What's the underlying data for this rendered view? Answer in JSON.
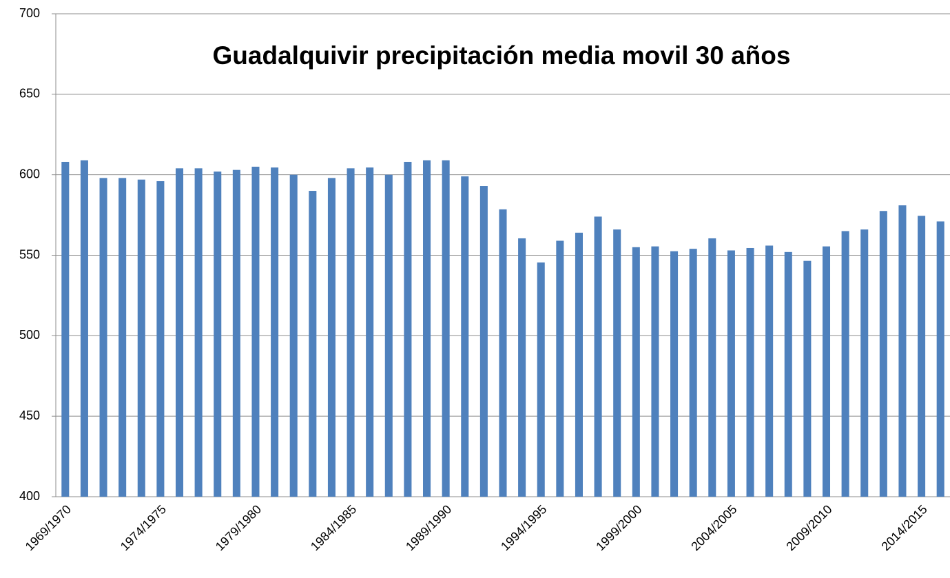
{
  "chart_data": {
    "type": "bar",
    "title": "Guadalquivir precipitación media movil 30 años",
    "categories": [
      "1969/1970",
      null,
      null,
      null,
      null,
      "1974/1975",
      null,
      null,
      null,
      null,
      "1979/1980",
      null,
      null,
      null,
      null,
      "1984/1985",
      null,
      null,
      null,
      null,
      "1989/1990",
      null,
      null,
      null,
      null,
      "1994/1995",
      null,
      null,
      null,
      null,
      "1999/2000",
      null,
      null,
      null,
      null,
      "2004/2005",
      null,
      null,
      null,
      null,
      "2009/2010",
      null,
      null,
      null,
      null,
      "2014/2015",
      null
    ],
    "values": [
      608,
      609,
      598,
      598,
      597,
      596,
      604,
      604,
      602,
      603,
      605,
      604.5,
      600,
      590,
      598,
      604,
      604.5,
      600,
      608,
      609,
      609,
      599,
      593,
      578.5,
      560.5,
      545.5,
      559,
      564,
      574,
      566,
      555,
      555.5,
      552.5,
      554,
      560.5,
      553,
      554.5,
      556,
      552,
      546.5,
      555.5,
      565,
      566,
      577.5,
      581,
      574.5,
      571
    ],
    "color": "#4f81bd",
    "ylim": [
      400,
      700
    ],
    "yticks": [
      400,
      450,
      500,
      550,
      600,
      650,
      700
    ],
    "grid": true
  }
}
